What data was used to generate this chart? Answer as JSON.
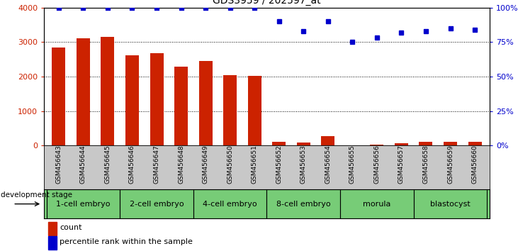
{
  "title": "GDS3959 / 202597_at",
  "samples": [
    "GSM456643",
    "GSM456644",
    "GSM456645",
    "GSM456646",
    "GSM456647",
    "GSM456648",
    "GSM456649",
    "GSM456650",
    "GSM456651",
    "GSM456652",
    "GSM456653",
    "GSM456654",
    "GSM456655",
    "GSM456656",
    "GSM456657",
    "GSM456658",
    "GSM456659",
    "GSM456660"
  ],
  "counts": [
    2850,
    3100,
    3150,
    2620,
    2680,
    2280,
    2450,
    2040,
    2020,
    110,
    90,
    280,
    15,
    30,
    70,
    100,
    110,
    100
  ],
  "percentiles": [
    100,
    100,
    100,
    100,
    100,
    100,
    100,
    100,
    100,
    90,
    83,
    90,
    75,
    78,
    82,
    83,
    85,
    84
  ],
  "stages": [
    {
      "label": "1-cell embryo",
      "start": 0,
      "end": 2
    },
    {
      "label": "2-cell embryo",
      "start": 3,
      "end": 5
    },
    {
      "label": "4-cell embryo",
      "start": 6,
      "end": 8
    },
    {
      "label": "8-cell embryo",
      "start": 9,
      "end": 11
    },
    {
      "label": "morula",
      "start": 12,
      "end": 14
    },
    {
      "label": "blastocyst",
      "start": 15,
      "end": 17
    }
  ],
  "bar_color": "#CC2200",
  "dot_color": "#0000CC",
  "stage_bg": "#77CC77",
  "stage_border": "#000000",
  "sample_bg": "#C8C8C8",
  "left_axis_color": "#CC2200",
  "right_axis_color": "#0000CC",
  "ylim_left": [
    0,
    4000
  ],
  "ylim_right": [
    0,
    100
  ],
  "yticks_left": [
    0,
    1000,
    2000,
    3000,
    4000
  ],
  "yticks_right": [
    0,
    25,
    50,
    75,
    100
  ],
  "ytick_labels_right": [
    "0%",
    "25%",
    "50%",
    "75%",
    "100%"
  ]
}
